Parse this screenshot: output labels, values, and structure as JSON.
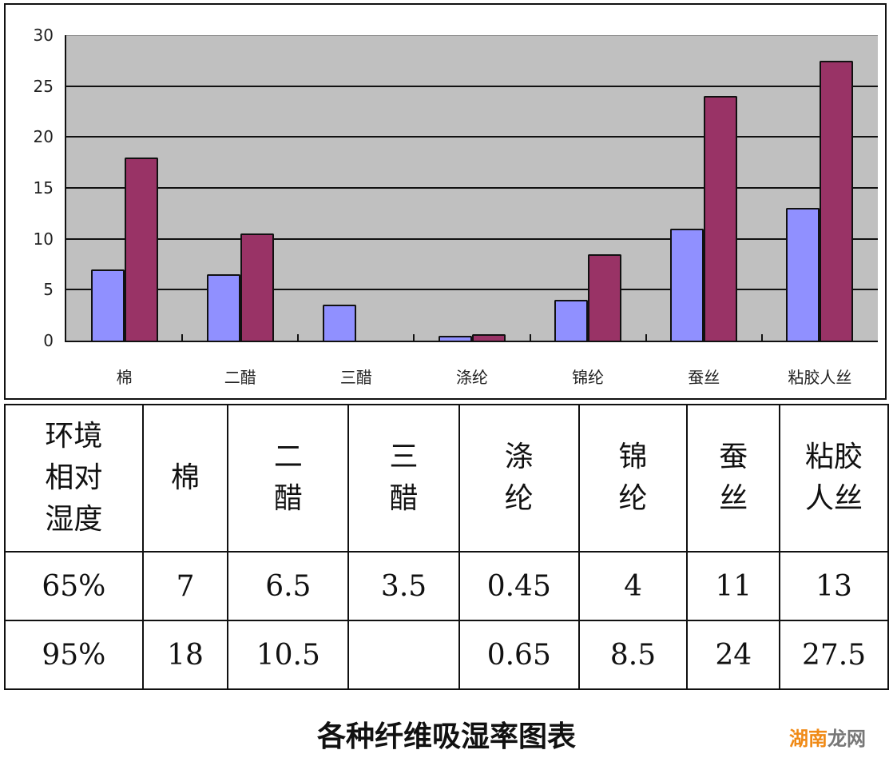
{
  "chart_data": {
    "type": "bar",
    "title": "各种纤维吸湿率图表",
    "xlabel": "",
    "ylabel": "",
    "ylim": [
      0,
      30
    ],
    "yticks": [
      0,
      5,
      10,
      15,
      20,
      25,
      30
    ],
    "grid": true,
    "legend": null,
    "categories": [
      "棉",
      "二醋",
      "三醋",
      "涤纶",
      "锦纶",
      "蚕丝",
      "粘胶人丝"
    ],
    "series": [
      {
        "name": "65%",
        "color": "#9090ff",
        "values": [
          7,
          6.5,
          3.5,
          0.45,
          4,
          11,
          13
        ]
      },
      {
        "name": "95%",
        "color": "#993366",
        "values": [
          18,
          10.5,
          null,
          0.65,
          8.5,
          24,
          27.5
        ]
      }
    ]
  },
  "axis": {
    "y_labels": [
      "0",
      "5",
      "10",
      "15",
      "20",
      "25",
      "30"
    ],
    "x_labels": [
      "棉",
      "二醋",
      "三醋",
      "涤纶",
      "锦纶",
      "蚕丝",
      "粘胶人丝"
    ]
  },
  "table": {
    "header_label": "环境\n相对\n湿度",
    "header_cells": [
      "棉",
      "二\n醋",
      "三\n醋",
      "涤\n纶",
      "锦\n纶",
      "蚕\n丝",
      "粘胶\n人丝"
    ],
    "rows": [
      {
        "label": "65%",
        "cells": [
          "7",
          "6.5",
          "3.5",
          "0.45",
          "4",
          "11",
          "13"
        ]
      },
      {
        "label": "95%",
        "cells": [
          "18",
          "10.5",
          "",
          "0.65",
          "8.5",
          "24",
          "27.5"
        ]
      }
    ]
  },
  "caption": "各种纤维吸湿率图表",
  "watermark": {
    "part1": "湖南",
    "part2": "龙网"
  }
}
